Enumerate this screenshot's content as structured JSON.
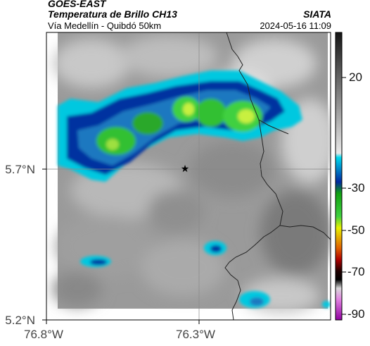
{
  "header": {
    "satellite": "GOES-EAST",
    "product": "Temperatura de Brillo CH13",
    "route": "Vía Medellín - Quibdó 50km",
    "agency": "SIATA",
    "datetime": "2024-05-16 11:09"
  },
  "map": {
    "lat_labels": [
      "5.7°N",
      "5.2°N"
    ],
    "lon_labels": [
      "76.8°W",
      "76.3°W"
    ],
    "marker": "star-marker"
  },
  "colorbar": {
    "ticks": [
      "20",
      "-30",
      "-50",
      "-70",
      "-90"
    ],
    "colors": {
      "warm_top": "#1a1a1a",
      "warm_bottom": "#f2f2f2",
      "cyan": "#00c8e0",
      "blue": "#0030a0",
      "green": "#30c030",
      "yellow": "#e8f000",
      "orange": "#e06000",
      "red": "#b00000",
      "black": "#000000",
      "magenta": "#c000c0"
    }
  }
}
